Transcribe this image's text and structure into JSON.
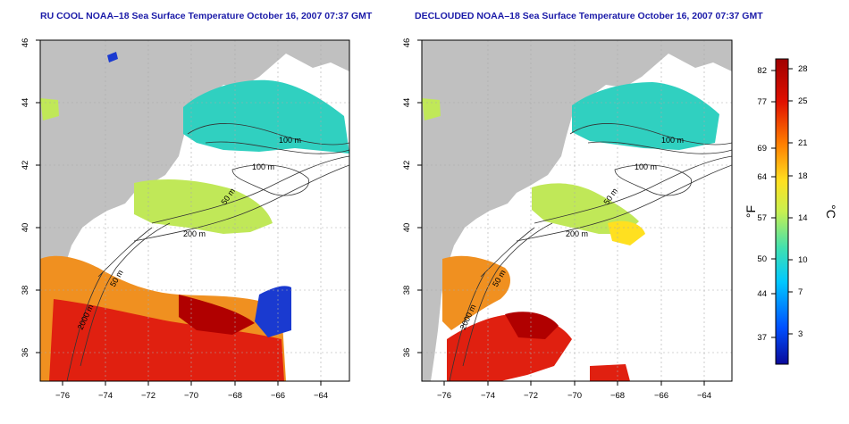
{
  "panels": [
    {
      "title": "RU COOL NOAA–18 Sea Surface Temperature October 16, 2007 07:37 GMT",
      "contour_labels": [
        "100 m",
        "100 m",
        "50 m",
        "200 m",
        "50 m",
        "2000 m"
      ]
    },
    {
      "title": "DECLOUDED NOAA–18 Sea Surface Temperature October 16, 2007 07:37 GMT",
      "contour_labels": [
        "100 m",
        "100 m",
        "50 m",
        "200 m",
        "50 m",
        "2000 m"
      ]
    }
  ],
  "axes": {
    "lon_ticks": [
      "−76",
      "−74",
      "−72",
      "−70",
      "−68",
      "−66",
      "−64"
    ],
    "lat_ticks": [
      "36",
      "38",
      "40",
      "42",
      "44",
      "46"
    ]
  },
  "colorbar": {
    "f_label": "°F",
    "c_label": "°C",
    "f_ticks": [
      "82",
      "77",
      "69",
      "64",
      "57",
      "50",
      "44",
      "37"
    ],
    "c_ticks": [
      "28",
      "25",
      "21",
      "18",
      "14",
      "10",
      "7",
      "3"
    ],
    "colors": [
      "#0a0a9a",
      "#0050ff",
      "#00c8ff",
      "#40e0b0",
      "#c8f050",
      "#ffe020",
      "#ff8000",
      "#e01000",
      "#a00000"
    ]
  },
  "colors": {
    "land": "#c0c0c0",
    "title": "#1a1aa8",
    "cold": "#1a3ad0",
    "cool": "#30d0c0",
    "mild": "#c0e858",
    "warm": "#f09020",
    "hot": "#e02010",
    "vhot": "#b00000"
  }
}
